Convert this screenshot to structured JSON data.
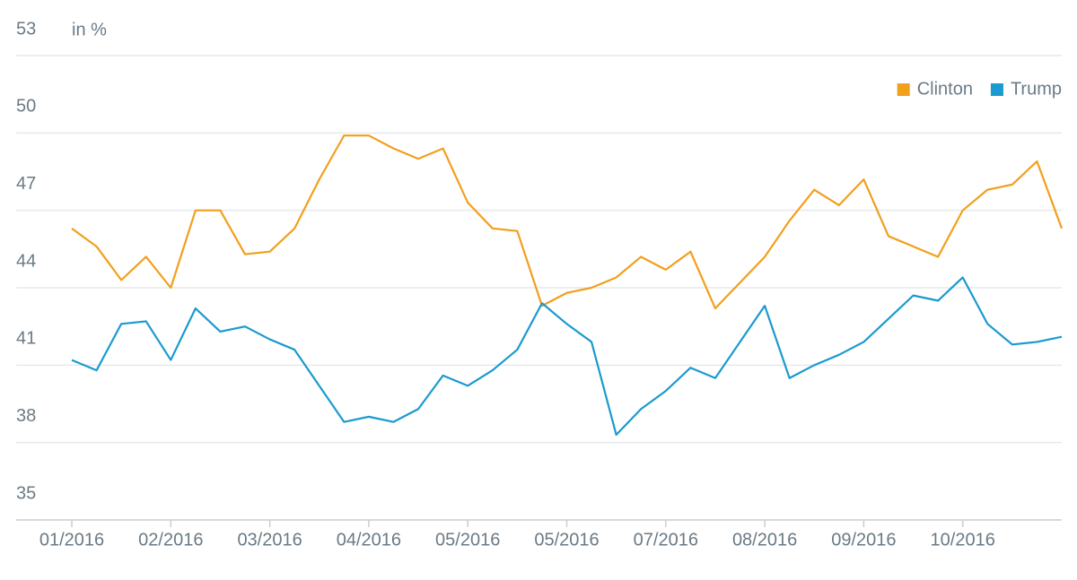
{
  "chart_data": {
    "type": "line",
    "unit_label": "in %",
    "categories": [
      "01/2016",
      null,
      null,
      null,
      "02/2016",
      null,
      null,
      null,
      "03/2016",
      null,
      null,
      null,
      "04/2016",
      null,
      null,
      null,
      "05/2016",
      null,
      null,
      null,
      "05/2016",
      null,
      null,
      null,
      "07/2016",
      null,
      null,
      null,
      "08/2016",
      null,
      null,
      null,
      "09/2016",
      null,
      null,
      null,
      "10/2016",
      null,
      null,
      null,
      null
    ],
    "series": [
      {
        "name": "Clinton",
        "color": "#f29f1c",
        "values": [
          46.3,
          45.6,
          44.3,
          45.2,
          44.0,
          47.0,
          47.0,
          45.3,
          45.4,
          46.3,
          48.2,
          49.9,
          49.9,
          49.4,
          49.0,
          49.4,
          47.3,
          46.3,
          46.2,
          43.3,
          43.8,
          44.0,
          44.4,
          45.2,
          44.7,
          45.4,
          43.2,
          44.2,
          45.2,
          46.6,
          47.8,
          47.2,
          48.2,
          46.0,
          45.6,
          45.2,
          47.0,
          47.8,
          48.0,
          48.9,
          46.3
        ]
      },
      {
        "name": "Trump",
        "color": "#1a9ad0",
        "values": [
          41.2,
          40.8,
          42.6,
          42.7,
          41.2,
          43.2,
          42.3,
          42.5,
          42.0,
          41.6,
          40.2,
          38.8,
          39.0,
          38.8,
          39.3,
          40.6,
          40.2,
          40.8,
          41.6,
          43.4,
          42.6,
          41.9,
          38.3,
          39.3,
          40.0,
          40.9,
          40.5,
          41.9,
          43.3,
          40.5,
          41.0,
          41.4,
          41.9,
          42.8,
          43.7,
          43.5,
          44.4,
          42.6,
          41.8,
          41.9,
          42.1
        ]
      }
    ],
    "ylim": [
      35,
      53
    ],
    "yticks": [
      35,
      38,
      41,
      44,
      47,
      50,
      53
    ],
    "grid": true,
    "legend": "top-right"
  }
}
